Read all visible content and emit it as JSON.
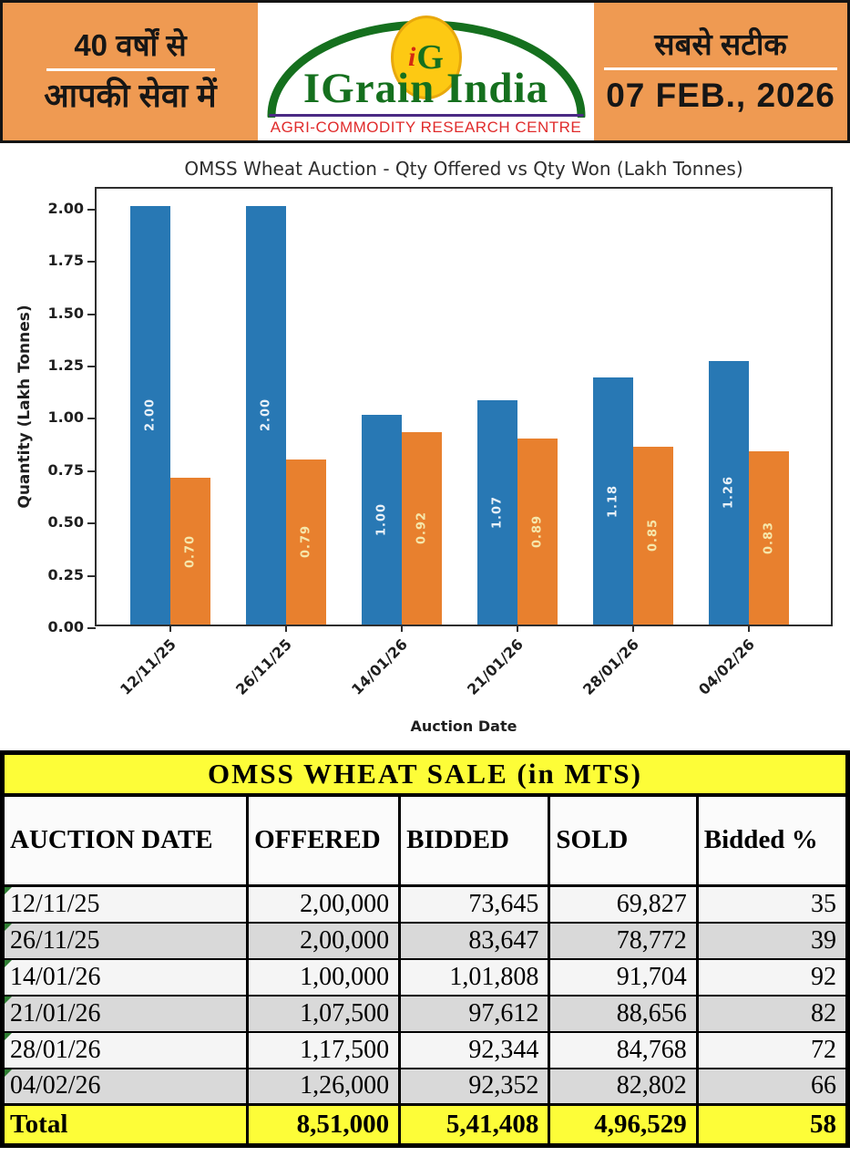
{
  "header": {
    "left_line1": "40 वर्षों से",
    "left_line2": "आपकी सेवा में",
    "logo_i": "i",
    "logo_g": "G",
    "brand": "IGrain India",
    "brand_sub": "AGRI-COMMODITY RESEARCH CENTRE",
    "right_line1": "सबसे सटीक",
    "right_date": "07 FEB., 2026"
  },
  "chart_data": {
    "type": "bar",
    "title": "OMSS Wheat Auction - Qty Offered vs Qty Won (Lakh Tonnes)",
    "xlabel": "Auction Date",
    "ylabel": "Quantity (Lakh Tonnes)",
    "categories": [
      "12/11/25",
      "26/11/25",
      "14/01/26",
      "21/01/26",
      "28/01/26",
      "04/02/26"
    ],
    "series": [
      {
        "name": "Qty Offered",
        "color": "#2878b4",
        "values": [
          2.0,
          2.0,
          1.0,
          1.07,
          1.18,
          1.26
        ]
      },
      {
        "name": "Qty Won",
        "color": "#e8802e",
        "values": [
          0.7,
          0.79,
          0.92,
          0.89,
          0.85,
          0.83
        ]
      }
    ],
    "ylim": [
      0,
      2.1
    ],
    "yticks": [
      0.0,
      0.25,
      0.5,
      0.75,
      1.0,
      1.25,
      1.5,
      1.75,
      2.0
    ],
    "bar_labels": true,
    "legend": "none",
    "grid": false
  },
  "table": {
    "title": "OMSS WHEAT SALE (in MTS)",
    "columns": [
      "AUCTION DATE",
      "OFFERED",
      "BIDDED",
      "SOLD",
      "Bidded %"
    ],
    "rows": [
      [
        "12/11/25",
        "2,00,000",
        "73,645",
        "69,827",
        "35"
      ],
      [
        "26/11/25",
        "2,00,000",
        "83,647",
        "78,772",
        "39"
      ],
      [
        "14/01/26",
        "1,00,000",
        "1,01,808",
        "91,704",
        "92"
      ],
      [
        "21/01/26",
        "1,07,500",
        "97,612",
        "88,656",
        "82"
      ],
      [
        "28/01/26",
        "1,17,500",
        "92,344",
        "84,768",
        "72"
      ],
      [
        "04/02/26",
        "1,26,000",
        "92,352",
        "82,802",
        "66"
      ]
    ],
    "total": [
      "Total",
      "8,51,000",
      "5,41,408",
      "4,96,529",
      "58"
    ]
  }
}
